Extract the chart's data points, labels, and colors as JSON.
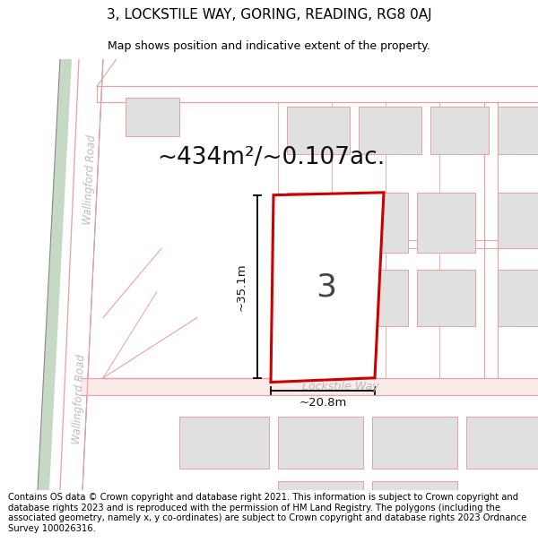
{
  "title": "3, LOCKSTILE WAY, GORING, READING, RG8 0AJ",
  "subtitle": "Map shows position and indicative extent of the property.",
  "area_text": "~434m²/~0.107ac.",
  "dim_height": "~35.1m",
  "dim_width": "~20.8m",
  "label_number": "3",
  "footer": "Contains OS data © Crown copyright and database right 2021. This information is subject to Crown copyright and database rights 2023 and is reproduced with the permission of HM Land Registry. The polygons (including the associated geometry, namely x, y co-ordinates) are subject to Crown copyright and database rights 2023 Ordnance Survey 100026316.",
  "bg_color": "#ffffff",
  "road_color": "#e8a0a0",
  "road_fill": "#f5d0d0",
  "plot_outline_color": "#cc0000",
  "plot_fill": "#ffffff",
  "building_fill": "#e0e0e0",
  "building_outline": "#e8a0a0",
  "green_color": "#c5d9c5",
  "gray_line": "#aaaaaa",
  "road_label": "Lockstile Way",
  "wallingford_label": "Wallingford Road",
  "title_fontsize": 11,
  "subtitle_fontsize": 9,
  "area_fontsize": 19,
  "footer_fontsize": 7.2
}
